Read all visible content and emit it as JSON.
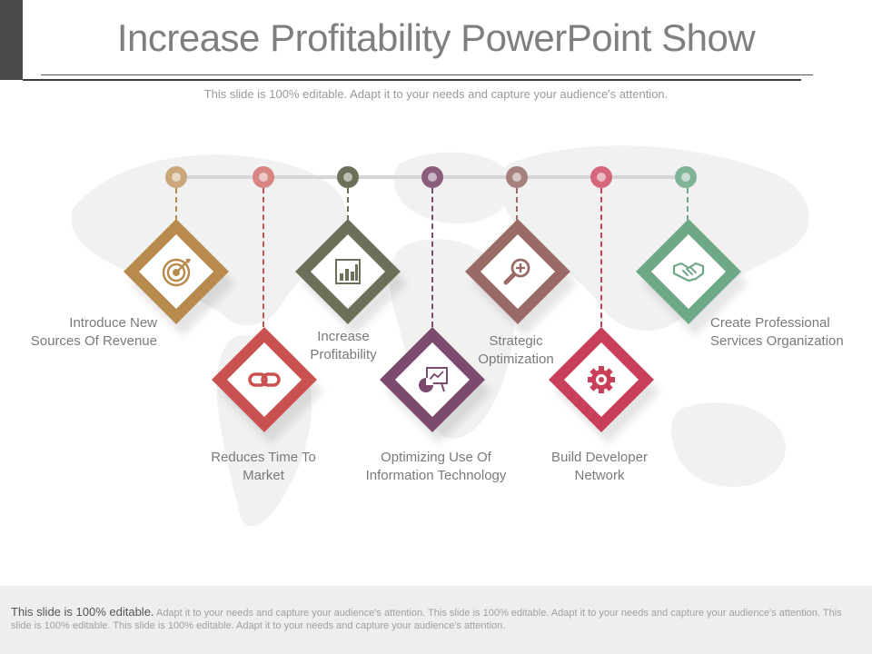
{
  "title": "Increase Profitability PowerPoint Show",
  "subtitle": "This slide is 100% editable. Adapt it to your needs and capture your audience's attention.",
  "items": [
    {
      "label_line1": "Introduce  New",
      "label_line2": "Sources Of Revenue",
      "color": "#b88a4e",
      "icon": "target-icon"
    },
    {
      "label_line1": "Reduces Time To",
      "label_line2": "Market",
      "color": "#c9514f",
      "icon": "chain-link-icon"
    },
    {
      "label_line1": "Increase",
      "label_line2": "Profitability",
      "color": "#6b7158",
      "icon": "bar-chart-icon"
    },
    {
      "label_line1": "Optimizing Use Of",
      "label_line2": "Information  Technology",
      "color": "#7b4a6d",
      "icon": "presentation-board-icon"
    },
    {
      "label_line1": "Strategic",
      "label_line2": "Optimization",
      "color": "#9a6a66",
      "icon": "magnifier-plus-icon"
    },
    {
      "label_line1": "Build Developer",
      "label_line2": "Network",
      "color": "#c93f5a",
      "icon": "gear-icon"
    },
    {
      "label_line1": "Create Professional",
      "label_line2": "Services Organization",
      "color": "#6fa886",
      "icon": "handshake-icon"
    }
  ],
  "footer": {
    "lead": "This slide is 100% editable.",
    "rest": " Adapt it to your needs and capture your audience's attention. This slide is 100% editable. Adapt it to your needs and capture your audience's attention. This slide is 100% editable. This slide is 100% editable. Adapt it to your needs and capture your audience's attention."
  }
}
